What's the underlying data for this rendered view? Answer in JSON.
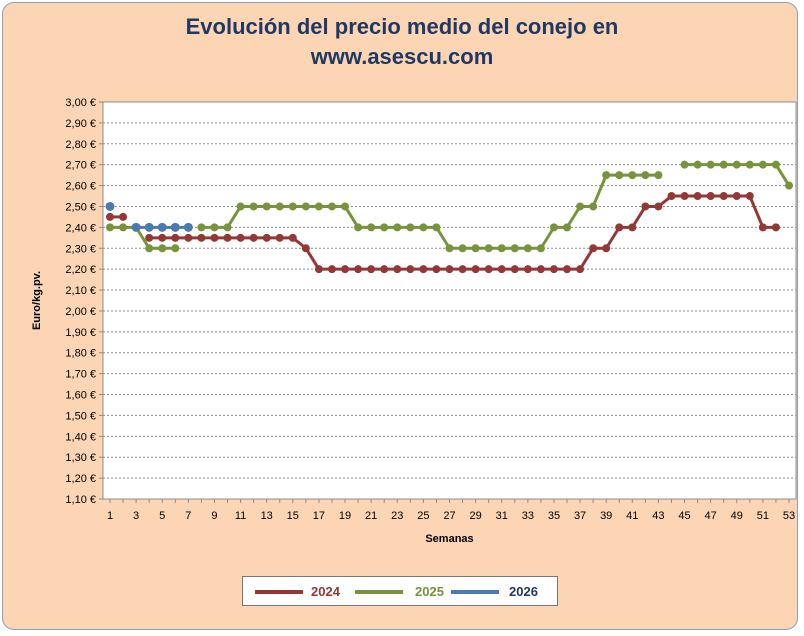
{
  "chart_data": {
    "type": "line",
    "title_line1": "Evolución del precio medio del conejo en",
    "title_line2": "www.asescu.com",
    "xlabel": "Semanas",
    "ylabel": "Euro/kg.pv.",
    "xlim": [
      1,
      53
    ],
    "ylim": [
      1.1,
      3.0
    ],
    "grid": true,
    "legend_position": "bottom",
    "x_ticks": [
      "1",
      "3",
      "5",
      "7",
      "9",
      "11",
      "13",
      "15",
      "17",
      "19",
      "21",
      "23",
      "25",
      "27",
      "29",
      "31",
      "33",
      "35",
      "37",
      "39",
      "41",
      "43",
      "45",
      "47",
      "49",
      "51",
      "53"
    ],
    "y_ticks": [
      "1,10 €",
      "1,20 €",
      "1,30 €",
      "1,40 €",
      "1,50 €",
      "1,60 €",
      "1,70 €",
      "1,80 €",
      "1,90 €",
      "2,00 €",
      "2,10 €",
      "2,20 €",
      "2,30 €",
      "2,40 €",
      "2,50 €",
      "2,60 €",
      "2,70 €",
      "2,80 €",
      "2,90 €",
      "3,00 €"
    ],
    "series": [
      {
        "name": "2024",
        "color": "#953735",
        "values": [
          2.45,
          2.45,
          null,
          2.35,
          2.35,
          2.35,
          2.35,
          2.35,
          2.35,
          2.35,
          2.35,
          2.35,
          2.35,
          2.35,
          2.35,
          2.3,
          2.2,
          2.2,
          2.2,
          2.2,
          2.2,
          2.2,
          2.2,
          2.2,
          2.2,
          2.2,
          2.2,
          2.2,
          2.2,
          2.2,
          2.2,
          2.2,
          2.2,
          2.2,
          2.2,
          2.2,
          2.2,
          2.3,
          2.3,
          2.4,
          2.4,
          2.5,
          2.5,
          2.55,
          2.55,
          2.55,
          2.55,
          2.55,
          2.55,
          2.55,
          2.4,
          2.4
        ]
      },
      {
        "name": "2025",
        "color": "#77933c",
        "values": [
          2.4,
          2.4,
          2.4,
          2.3,
          2.3,
          2.3,
          null,
          2.4,
          2.4,
          2.4,
          2.5,
          2.5,
          2.5,
          2.5,
          2.5,
          2.5,
          2.5,
          2.5,
          2.5,
          2.4,
          2.4,
          2.4,
          2.4,
          2.4,
          2.4,
          2.4,
          2.3,
          2.3,
          2.3,
          2.3,
          2.3,
          2.3,
          2.3,
          2.3,
          2.4,
          2.4,
          2.5,
          2.5,
          2.65,
          2.65,
          2.65,
          2.65,
          2.65,
          null,
          2.7,
          2.7,
          2.7,
          2.7,
          2.7,
          2.7,
          2.7,
          2.7,
          2.6
        ]
      },
      {
        "name": "2026",
        "color": "#4a7ab0",
        "values": [
          2.5,
          null,
          2.4,
          2.4,
          2.4,
          2.4,
          2.4
        ]
      }
    ]
  }
}
